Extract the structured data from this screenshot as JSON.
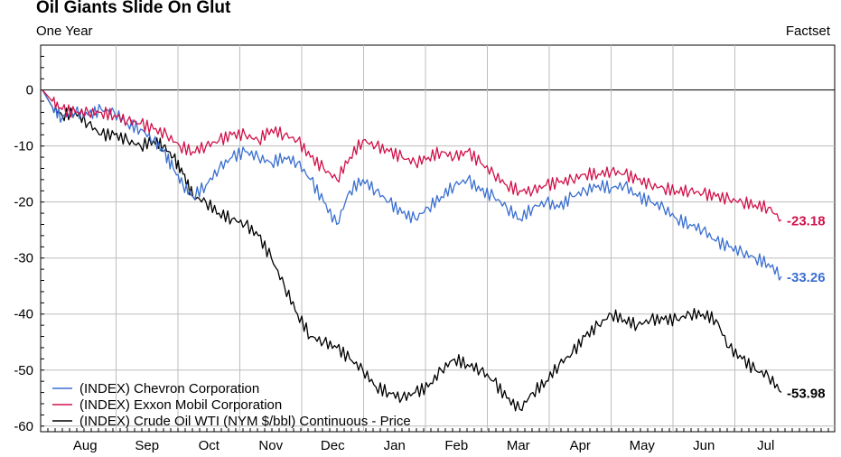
{
  "header": {
    "title": "Oil Giants Slide On Glut",
    "subtitle": "One Year",
    "source": "Factset"
  },
  "chart_data": {
    "type": "line",
    "ylim": [
      -61,
      8
    ],
    "yticks": [
      0,
      -10,
      -20,
      -30,
      -40,
      -50,
      -60
    ],
    "months": [
      "Aug",
      "Sep",
      "Oct",
      "Nov",
      "Dec",
      "Jan",
      "Feb",
      "Mar",
      "Apr",
      "May",
      "Jun",
      "Jul"
    ],
    "grid": true,
    "legend_position": "bottom-left",
    "colors": {
      "chevron": "#3a6fd0",
      "exxon": "#d0114a",
      "crude": "#000000",
      "zero_line": "#000000",
      "grid": "#bdbdbd"
    },
    "series": [
      {
        "key": "chevron",
        "name": "(INDEX) Chevron Corporation",
        "end_label": "-33.26",
        "points": [
          [
            0,
            0
          ],
          [
            0.15,
            -3
          ],
          [
            0.3,
            -5
          ],
          [
            0.5,
            -4
          ],
          [
            0.7,
            -4.5
          ],
          [
            0.9,
            -3.5
          ],
          [
            1.1,
            -4
          ],
          [
            1.3,
            -6
          ],
          [
            1.5,
            -7
          ],
          [
            1.7,
            -9
          ],
          [
            1.85,
            -11
          ],
          [
            2.0,
            -14
          ],
          [
            2.15,
            -17
          ],
          [
            2.3,
            -19
          ],
          [
            2.5,
            -17
          ],
          [
            2.7,
            -14
          ],
          [
            2.9,
            -12
          ],
          [
            3.1,
            -11
          ],
          [
            3.3,
            -12
          ],
          [
            3.5,
            -13
          ],
          [
            3.7,
            -12
          ],
          [
            3.9,
            -13
          ],
          [
            4.1,
            -16
          ],
          [
            4.3,
            -20
          ],
          [
            4.5,
            -24
          ],
          [
            4.7,
            -18
          ],
          [
            4.9,
            -16
          ],
          [
            5.1,
            -18
          ],
          [
            5.3,
            -20
          ],
          [
            5.5,
            -22
          ],
          [
            5.7,
            -23
          ],
          [
            5.9,
            -21
          ],
          [
            6.1,
            -19
          ],
          [
            6.3,
            -17
          ],
          [
            6.5,
            -16
          ],
          [
            6.7,
            -18
          ],
          [
            6.9,
            -19
          ],
          [
            7.1,
            -21
          ],
          [
            7.3,
            -23
          ],
          [
            7.5,
            -21
          ],
          [
            7.7,
            -20
          ],
          [
            7.9,
            -21
          ],
          [
            8.1,
            -19
          ],
          [
            8.3,
            -18
          ],
          [
            8.5,
            -17
          ],
          [
            8.7,
            -17.5
          ],
          [
            8.9,
            -17
          ],
          [
            9.1,
            -19
          ],
          [
            9.3,
            -20
          ],
          [
            9.5,
            -21
          ],
          [
            9.7,
            -23
          ],
          [
            9.9,
            -24
          ],
          [
            10.1,
            -25
          ],
          [
            10.3,
            -27
          ],
          [
            10.5,
            -28
          ],
          [
            10.7,
            -29
          ],
          [
            10.9,
            -30
          ],
          [
            11.1,
            -31
          ],
          [
            11.3,
            -33.26
          ]
        ]
      },
      {
        "key": "exxon",
        "name": "(INDEX) Exxon Mobil Corporation",
        "end_label": "-23.18",
        "points": [
          [
            0,
            0
          ],
          [
            0.15,
            -2
          ],
          [
            0.3,
            -3.5
          ],
          [
            0.5,
            -4
          ],
          [
            0.7,
            -4
          ],
          [
            0.9,
            -4
          ],
          [
            1.1,
            -4.5
          ],
          [
            1.3,
            -5.5
          ],
          [
            1.5,
            -6
          ],
          [
            1.7,
            -7
          ],
          [
            1.9,
            -8
          ],
          [
            2.1,
            -10
          ],
          [
            2.3,
            -11
          ],
          [
            2.5,
            -10
          ],
          [
            2.7,
            -9
          ],
          [
            2.9,
            -8
          ],
          [
            3.1,
            -8
          ],
          [
            3.3,
            -9
          ],
          [
            3.5,
            -7
          ],
          [
            3.7,
            -8
          ],
          [
            3.9,
            -9
          ],
          [
            4.1,
            -12
          ],
          [
            4.3,
            -14
          ],
          [
            4.5,
            -16
          ],
          [
            4.7,
            -12
          ],
          [
            4.9,
            -9
          ],
          [
            5.1,
            -10
          ],
          [
            5.3,
            -11
          ],
          [
            5.5,
            -12
          ],
          [
            5.7,
            -13
          ],
          [
            5.9,
            -12
          ],
          [
            6.1,
            -11
          ],
          [
            6.3,
            -12
          ],
          [
            6.5,
            -11
          ],
          [
            6.7,
            -13
          ],
          [
            6.9,
            -15
          ],
          [
            7.1,
            -17
          ],
          [
            7.3,
            -18
          ],
          [
            7.5,
            -18
          ],
          [
            7.7,
            -17
          ],
          [
            7.9,
            -16.5
          ],
          [
            8.1,
            -16
          ],
          [
            8.3,
            -15
          ],
          [
            8.5,
            -15
          ],
          [
            8.7,
            -14.5
          ],
          [
            8.9,
            -15
          ],
          [
            9.1,
            -16
          ],
          [
            9.3,
            -17
          ],
          [
            9.5,
            -17.5
          ],
          [
            9.7,
            -18
          ],
          [
            9.9,
            -18
          ],
          [
            10.1,
            -18.5
          ],
          [
            10.3,
            -19
          ],
          [
            10.5,
            -19.5
          ],
          [
            10.7,
            -20
          ],
          [
            10.9,
            -20.5
          ],
          [
            11.1,
            -21
          ],
          [
            11.3,
            -23.18
          ]
        ]
      },
      {
        "key": "crude",
        "name": "(INDEX) Crude Oil WTI (NYM $/bbl) Continuous - Price",
        "end_label": "-53.98",
        "points": [
          [
            0,
            0
          ],
          [
            0.15,
            -3
          ],
          [
            0.3,
            -4.5
          ],
          [
            0.5,
            -4
          ],
          [
            0.7,
            -6
          ],
          [
            0.9,
            -8
          ],
          [
            1.1,
            -8
          ],
          [
            1.3,
            -9
          ],
          [
            1.5,
            -10
          ],
          [
            1.7,
            -9
          ],
          [
            1.85,
            -10
          ],
          [
            2.0,
            -12
          ],
          [
            2.15,
            -15
          ],
          [
            2.3,
            -19
          ],
          [
            2.5,
            -20
          ],
          [
            2.7,
            -22
          ],
          [
            2.9,
            -23
          ],
          [
            3.1,
            -24
          ],
          [
            3.3,
            -26
          ],
          [
            3.5,
            -30
          ],
          [
            3.7,
            -35
          ],
          [
            3.9,
            -40
          ],
          [
            4.1,
            -44
          ],
          [
            4.3,
            -45
          ],
          [
            4.5,
            -46
          ],
          [
            4.7,
            -48
          ],
          [
            4.9,
            -50
          ],
          [
            5.1,
            -53
          ],
          [
            5.3,
            -54
          ],
          [
            5.5,
            -55
          ],
          [
            5.7,
            -54
          ],
          [
            5.9,
            -53
          ],
          [
            6.1,
            -50
          ],
          [
            6.3,
            -48
          ],
          [
            6.5,
            -49
          ],
          [
            6.7,
            -50
          ],
          [
            6.9,
            -52
          ],
          [
            7.1,
            -55
          ],
          [
            7.3,
            -57
          ],
          [
            7.5,
            -54
          ],
          [
            7.7,
            -52
          ],
          [
            7.9,
            -49
          ],
          [
            8.1,
            -47
          ],
          [
            8.3,
            -44
          ],
          [
            8.5,
            -42
          ],
          [
            8.7,
            -40
          ],
          [
            8.9,
            -41
          ],
          [
            9.1,
            -42
          ],
          [
            9.3,
            -41
          ],
          [
            9.5,
            -41
          ],
          [
            9.7,
            -41
          ],
          [
            9.9,
            -40
          ],
          [
            10.1,
            -40
          ],
          [
            10.3,
            -41
          ],
          [
            10.5,
            -46
          ],
          [
            10.7,
            -48
          ],
          [
            10.9,
            -50
          ],
          [
            11.1,
            -51
          ],
          [
            11.3,
            -53.98
          ]
        ]
      }
    ]
  }
}
